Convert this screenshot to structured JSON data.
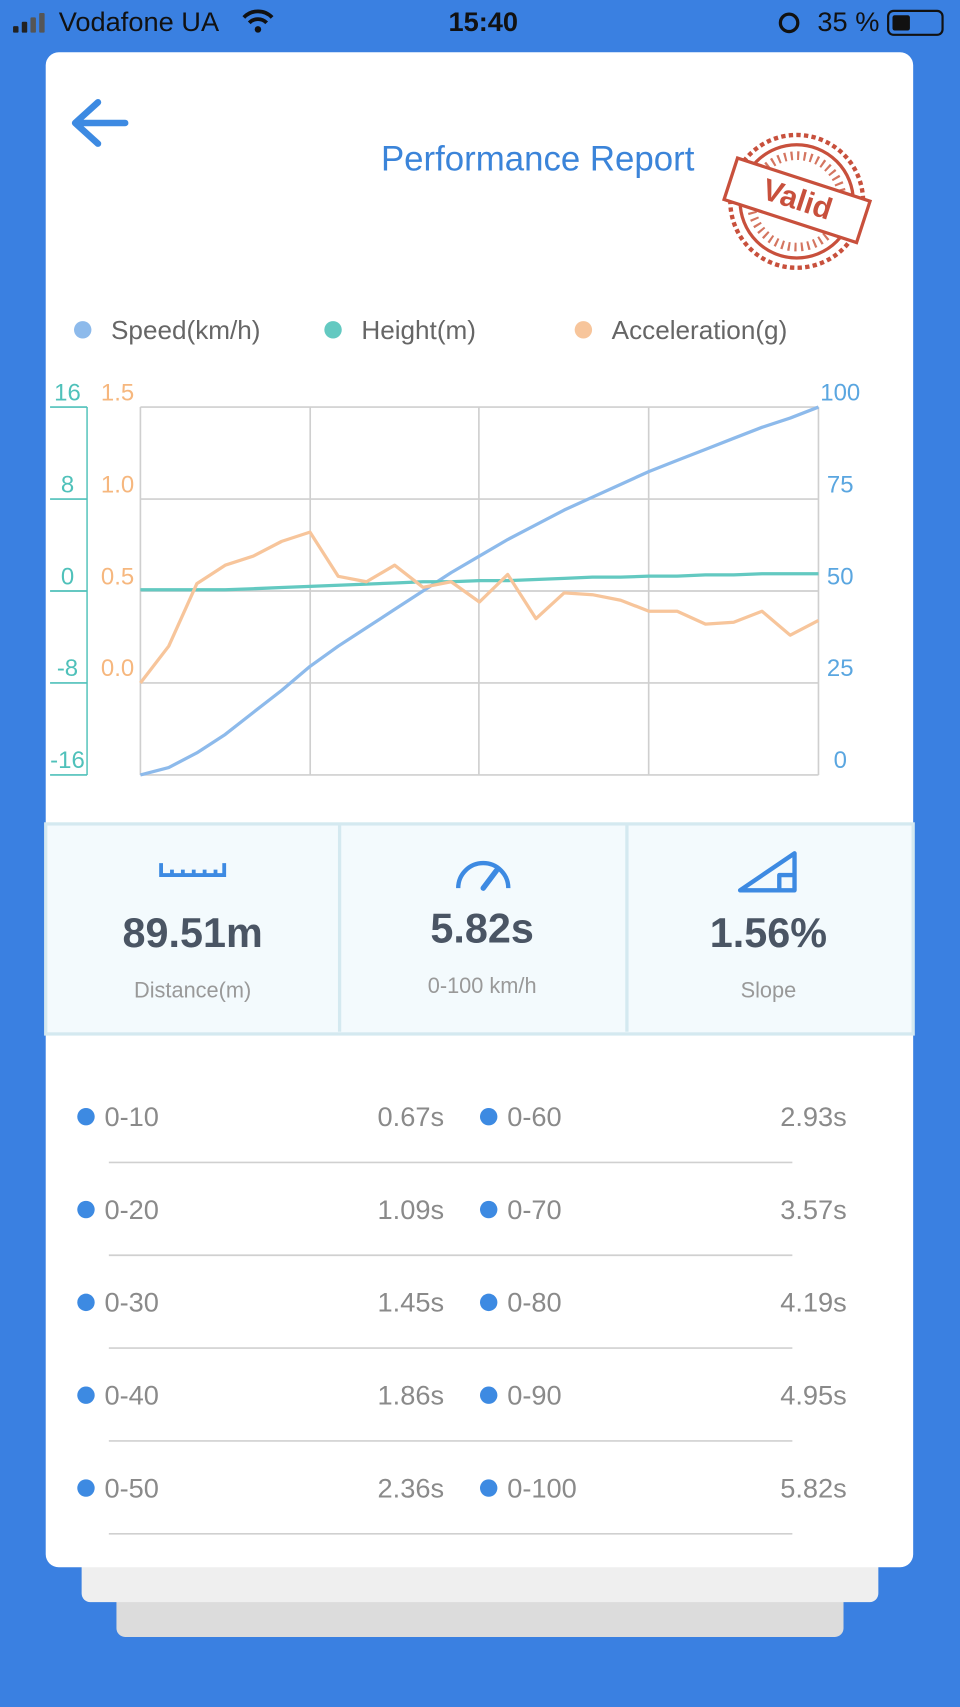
{
  "status_bar": {
    "carrier": "Vodafone UA",
    "time": "15:40",
    "battery": "35 %"
  },
  "header": {
    "title": "Performance Report",
    "stamp": "Valid"
  },
  "chart_data": {
    "type": "line",
    "series": [
      {
        "name": "Speed(km/h)",
        "color": "#8dbaeb",
        "axis": "y",
        "values": [
          0,
          2,
          6,
          11,
          17,
          23,
          29.5,
          35,
          40,
          45,
          50,
          55,
          59.5,
          64,
          68,
          72,
          75.5,
          79,
          82.5,
          85.5,
          88.5,
          91.5,
          94.5,
          97,
          100
        ]
      },
      {
        "name": "Height(m)",
        "color": "#63c9c1",
        "axis": "y2",
        "values": [
          0.1,
          0.1,
          0.1,
          0.1,
          0.2,
          0.3,
          0.4,
          0.5,
          0.6,
          0.7,
          0.8,
          0.8,
          0.9,
          0.9,
          1.0,
          1.1,
          1.2,
          1.2,
          1.3,
          1.3,
          1.4,
          1.4,
          1.5,
          1.5,
          1.5
        ]
      },
      {
        "name": "Acceleration(g)",
        "color": "#f7c59b",
        "axis": "y3",
        "values": [
          0,
          0.2,
          0.54,
          0.64,
          0.69,
          0.77,
          0.82,
          0.58,
          0.55,
          0.64,
          0.52,
          0.55,
          0.44,
          0.59,
          0.35,
          0.49,
          0.48,
          0.45,
          0.39,
          0.39,
          0.32,
          0.33,
          0.39,
          0.26,
          0.34
        ]
      }
    ],
    "ylim": [
      0,
      100
    ],
    "yticks": [
      0,
      25,
      50,
      75,
      100
    ],
    "y2lim": [
      -16,
      16
    ],
    "y2ticks": [
      -16,
      -8,
      0,
      8,
      16
    ],
    "y3lim": [
      -0.5,
      1.5
    ],
    "y3ticks": [
      {
        "value": 0,
        "label": "0.0"
      },
      0.5,
      {
        "value": 1,
        "label": "1.0"
      },
      1.5
    ],
    "grid": true
  },
  "stats": [
    {
      "value": "89.51m",
      "label": "Distance(m)"
    },
    {
      "value": "5.82s",
      "label": "0-100 km/h"
    },
    {
      "value": "1.56%",
      "label": "Slope"
    }
  ],
  "splits": [
    {
      "range": "0-10",
      "time": "0.67s"
    },
    {
      "range": "0-20",
      "time": "1.09s"
    },
    {
      "range": "0-30",
      "time": "1.45s"
    },
    {
      "range": "0-40",
      "time": "1.86s"
    },
    {
      "range": "0-50",
      "time": "2.36s"
    },
    {
      "range": "0-60",
      "time": "2.93s"
    },
    {
      "range": "0-70",
      "time": "3.57s"
    },
    {
      "range": "0-80",
      "time": "4.19s"
    },
    {
      "range": "0-90",
      "time": "4.95s"
    },
    {
      "range": "0-100",
      "time": "5.82s"
    }
  ]
}
